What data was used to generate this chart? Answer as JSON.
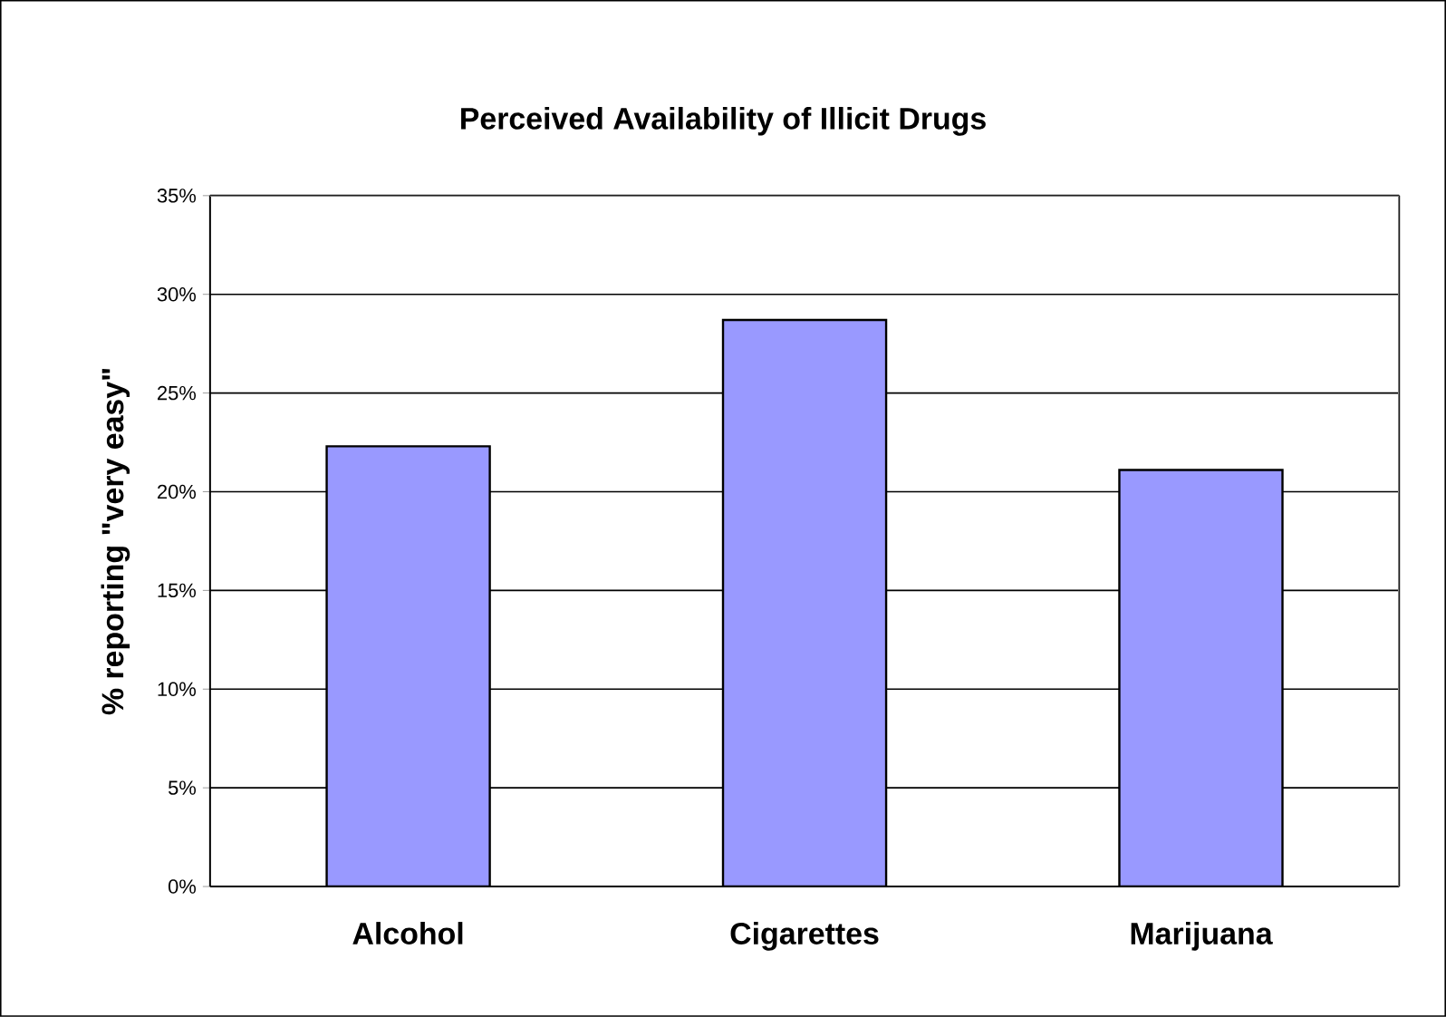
{
  "chart_data": {
    "type": "bar",
    "title": "Perceived Availability of Illicit Drugs",
    "ylabel": "% reporting \"very easy\"",
    "categories": [
      "Alcohol",
      "Cigarettes",
      "Marijuana"
    ],
    "values": [
      22.3,
      28.7,
      21.1
    ],
    "color": "#9999ff",
    "ylim": [
      0,
      35
    ],
    "yticks": [
      {
        "value": 0,
        "label": "0%"
      },
      {
        "value": 5,
        "label": "5%"
      },
      {
        "value": 10,
        "label": "10%"
      },
      {
        "value": 15,
        "label": "15%"
      },
      {
        "value": 20,
        "label": "20%"
      },
      {
        "value": 25,
        "label": "25%"
      },
      {
        "value": 30,
        "label": "30%"
      },
      {
        "value": 35,
        "label": "35%"
      }
    ],
    "grid": "y"
  }
}
